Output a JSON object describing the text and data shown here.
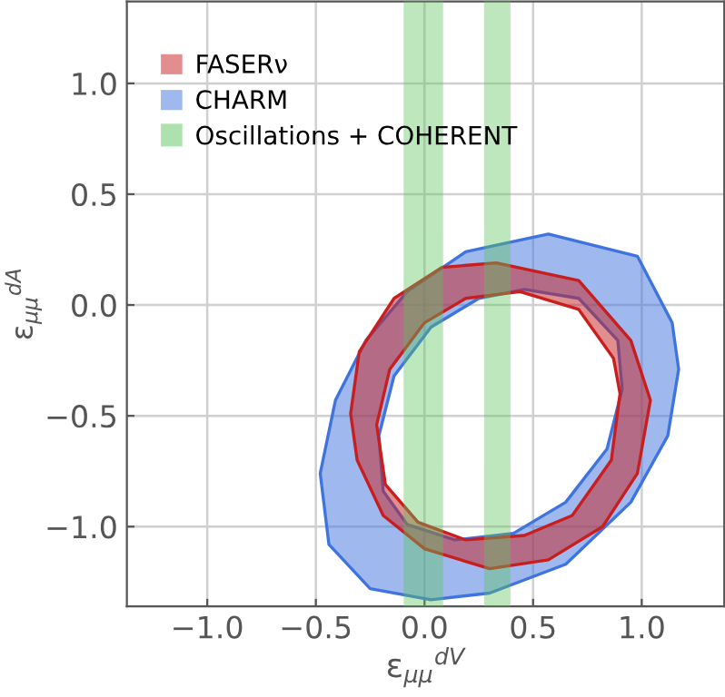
{
  "chart_data": {
    "type": "area",
    "xlabel": "ε$_{μμ}$$^{dV}$",
    "ylabel": "ε$_{μμ}$$^{dA}$",
    "xlim": [
      -1.37,
      1.38
    ],
    "ylim": [
      -1.36,
      1.37
    ],
    "xticks": [
      {
        "value": -1.0,
        "label": "−1.0"
      },
      {
        "value": -0.5,
        "label": "−0.5"
      },
      {
        "value": 0.0,
        "label": "0.0"
      },
      {
        "value": 0.5,
        "label": "0.5"
      },
      {
        "value": 1.0,
        "label": "1.0"
      }
    ],
    "yticks": [
      {
        "value": -1.0,
        "label": "−1.0"
      },
      {
        "value": -0.5,
        "label": "−0.5"
      },
      {
        "value": 0.0,
        "label": "0.0"
      },
      {
        "value": 0.5,
        "label": "0.5"
      },
      {
        "value": 1.0,
        "label": "1.0"
      }
    ],
    "grid": true,
    "legend": "top left",
    "series": [
      {
        "name": "CHARM",
        "color": "#3f74e0",
        "x": [
          0.57,
          0.98,
          1.14,
          1.17,
          1.12,
          0.95,
          0.65,
          0.3,
          0.03,
          -0.25,
          -0.44,
          -0.48,
          -0.41,
          -0.27,
          -0.08,
          0.19,
          null,
          0.46,
          0.71,
          0.89,
          0.91,
          0.84,
          0.65,
          0.41,
          0.14,
          -0.08,
          -0.19,
          -0.21,
          -0.14,
          0.03,
          0.25
        ],
        "values": [
          0.32,
          0.22,
          -0.08,
          -0.29,
          -0.59,
          -0.89,
          -1.17,
          -1.3,
          -1.33,
          -1.28,
          -1.08,
          -0.76,
          -0.43,
          -0.16,
          0.06,
          0.24,
          null,
          0.07,
          0.03,
          -0.16,
          -0.38,
          -0.65,
          -0.89,
          -1.03,
          -1.06,
          -0.99,
          -0.84,
          -0.59,
          -0.32,
          -0.1,
          0.03
        ]
      },
      {
        "name": "FASERν",
        "color": "#c81e1e",
        "x": [
          0.33,
          0.71,
          0.95,
          1.04,
          0.98,
          0.82,
          0.57,
          0.3,
          0.0,
          -0.19,
          -0.31,
          -0.34,
          -0.3,
          -0.14,
          0.08,
          null,
          0.44,
          0.71,
          0.87,
          0.9,
          0.86,
          0.68,
          0.46,
          0.19,
          -0.03,
          -0.18,
          -0.22,
          -0.16,
          0.0,
          0.19
        ],
        "values": [
          0.19,
          0.11,
          -0.16,
          -0.43,
          -0.76,
          -1.0,
          -1.15,
          -1.19,
          -1.1,
          -0.95,
          -0.7,
          -0.49,
          -0.21,
          0.03,
          0.17,
          null,
          0.06,
          -0.02,
          -0.24,
          -0.4,
          -0.7,
          -0.95,
          -1.04,
          -1.06,
          -0.98,
          -0.81,
          -0.54,
          -0.29,
          -0.08,
          0.03
        ]
      }
    ],
    "bands": [
      {
        "axis": "x",
        "from": -0.09,
        "to": 0.08,
        "label": "Oscillations + COHERENT",
        "color": "#5cc45c"
      },
      {
        "axis": "x",
        "from": 0.28,
        "to": 0.39,
        "color": "#5cc45c"
      }
    ]
  }
}
